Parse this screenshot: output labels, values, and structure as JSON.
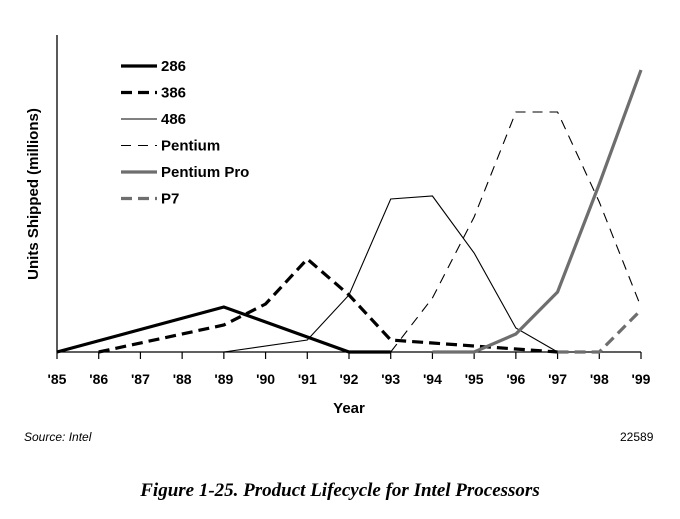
{
  "chart_data": {
    "type": "line",
    "xlabel": "Year",
    "ylabel": "Units Shipped (millions)",
    "x": [
      "'85",
      "'86",
      "'87",
      "'88",
      "'89",
      "'90",
      "'91",
      "'92",
      "'93",
      "'94",
      "'95",
      "'96",
      "'97",
      "'98",
      "'99"
    ],
    "xlim": [
      1985,
      1999
    ],
    "ylim": [
      0,
      100
    ],
    "y_ticks_shown": false,
    "grid": false,
    "legend_placement": "top-left",
    "series": [
      {
        "name": "286",
        "style": "thick-solid",
        "color": "#000000",
        "points": [
          [
            1985,
            0
          ],
          [
            1989,
            15
          ],
          [
            1992,
            0
          ],
          [
            1993,
            0
          ]
        ]
      },
      {
        "name": "386",
        "style": "thick-dashed",
        "color": "#000000",
        "points": [
          [
            1986,
            0
          ],
          [
            1989,
            9
          ],
          [
            1990,
            16
          ],
          [
            1991,
            31
          ],
          [
            1992,
            19
          ],
          [
            1993,
            4
          ],
          [
            1994,
            3
          ],
          [
            1995,
            2
          ],
          [
            1996,
            1
          ],
          [
            1997,
            0
          ]
        ]
      },
      {
        "name": "486",
        "style": "thin-solid",
        "color": "#000000",
        "points": [
          [
            1989,
            0
          ],
          [
            1991,
            4
          ],
          [
            1992,
            19
          ],
          [
            1993,
            51
          ],
          [
            1994,
            52
          ],
          [
            1995,
            33
          ],
          [
            1996,
            8
          ],
          [
            1997,
            0
          ]
        ]
      },
      {
        "name": "Pentium",
        "style": "thin-dashed",
        "color": "#000000",
        "points": [
          [
            1993,
            0
          ],
          [
            1994,
            18
          ],
          [
            1995,
            45
          ],
          [
            1996,
            80
          ],
          [
            1997,
            80
          ],
          [
            1998,
            50
          ],
          [
            1999,
            15
          ]
        ]
      },
      {
        "name": "Pentium Pro",
        "style": "thick-solid",
        "color": "#6e6e6e",
        "points": [
          [
            1994,
            0
          ],
          [
            1995,
            0
          ],
          [
            1996,
            6
          ],
          [
            1997,
            20
          ],
          [
            1998,
            56
          ],
          [
            1999,
            94
          ]
        ]
      },
      {
        "name": "P7",
        "style": "thick-dashed",
        "color": "#6e6e6e",
        "points": [
          [
            1997,
            0
          ],
          [
            1998,
            0
          ],
          [
            1999,
            14
          ]
        ]
      }
    ]
  },
  "source": "Source: Intel",
  "figure_id": "22589",
  "caption": "Figure 1-25.  Product Lifecycle for Intel Processors"
}
